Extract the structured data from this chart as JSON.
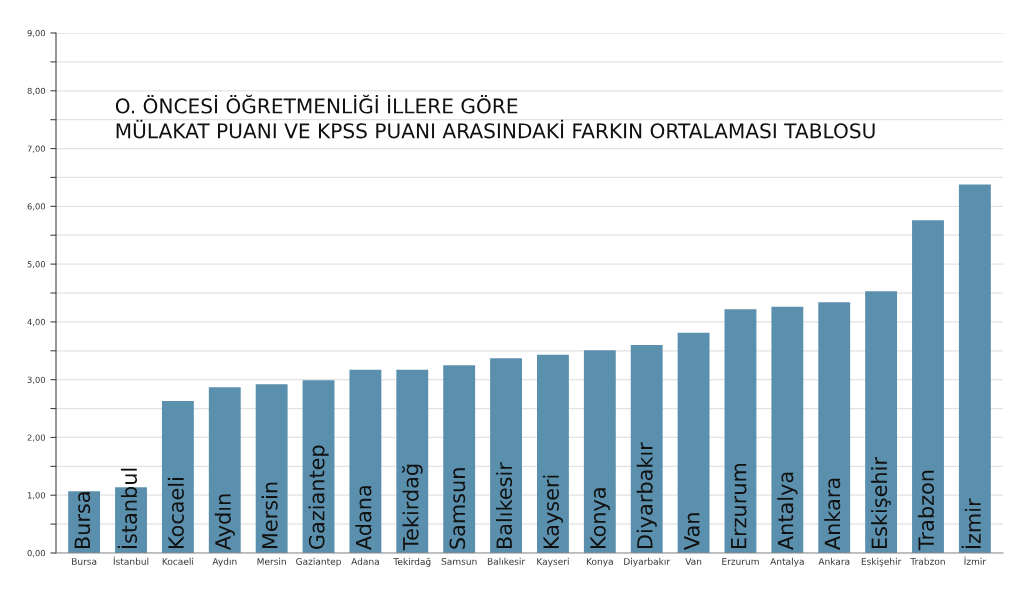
{
  "chart_data": {
    "type": "bar",
    "title": "O. ÖNCESİ ÖĞRETMENLİĞİ İLLERE GÖRE\nMÜLAKAT PUANI VE KPSS PUANI ARASINDAKİ FARKIN ORTALAMASI TABLOSU",
    "categories": [
      "Bursa",
      "İstanbul",
      "Kocaeli",
      "Aydın",
      "Mersin",
      "Gaziantep",
      "Adana",
      "Tekirdağ",
      "Samsun",
      "Balıkesir",
      "Kayseri",
      "Konya",
      "Diyarbakır",
      "Van",
      "Erzurum",
      "Antalya",
      "Ankara",
      "Eskişehir",
      "Trabzon",
      "İzmir"
    ],
    "values": [
      1.07,
      1.14,
      2.63,
      2.87,
      2.92,
      2.99,
      3.17,
      3.17,
      3.25,
      3.37,
      3.43,
      3.51,
      3.6,
      3.81,
      4.22,
      4.26,
      4.34,
      4.53,
      5.76,
      6.38
    ],
    "color": "#5a90ad",
    "ylim": [
      0,
      9
    ],
    "yticks": [
      {
        "value": 0,
        "label": "0,00"
      },
      {
        "value": 0.5,
        "label": null
      },
      {
        "value": 1,
        "label": "1,00"
      },
      {
        "value": 1.5,
        "label": null
      },
      {
        "value": 2,
        "label": "2,00"
      },
      {
        "value": 2.5,
        "label": null
      },
      {
        "value": 3,
        "label": "3,00"
      },
      {
        "value": 3.5,
        "label": null
      },
      {
        "value": 4,
        "label": "4,00"
      },
      {
        "value": 4.5,
        "label": null
      },
      {
        "value": 5,
        "label": "5,00"
      },
      {
        "value": 5.5,
        "label": null
      },
      {
        "value": 6,
        "label": "6,00"
      },
      {
        "value": 6.5,
        "label": null
      },
      {
        "value": 7,
        "label": "7,00"
      },
      {
        "value": 7.5,
        "label": null
      },
      {
        "value": 8,
        "label": "8,00"
      },
      {
        "value": 8.5,
        "label": null
      },
      {
        "value": 9,
        "label": "9,00"
      }
    ],
    "grid": "y"
  }
}
